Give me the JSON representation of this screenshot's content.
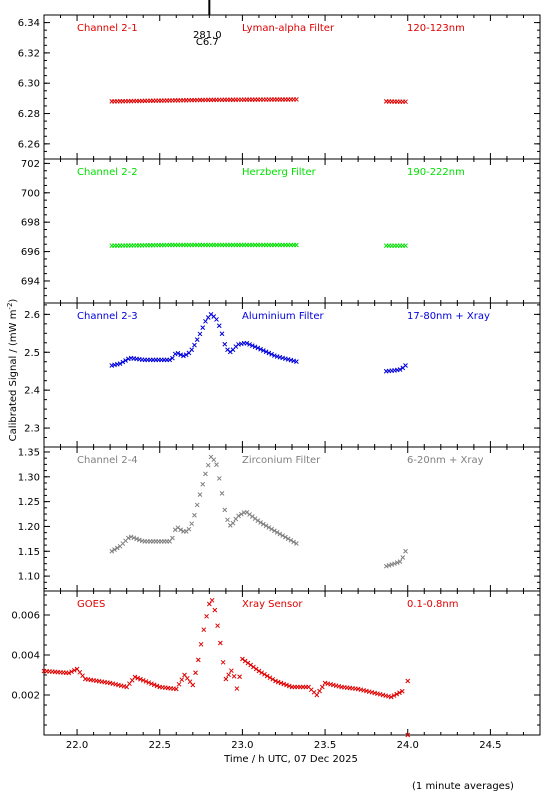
{
  "figure": {
    "ylabel": "Calibrated Signal / (mW m",
    "ylabel_sup": "-2",
    "ylabel_close": ")",
    "xlabel": "Time / h UTC, 07 Dec 2025",
    "footnote": "(1 minute averages)",
    "xlim": [
      21.8,
      24.8
    ],
    "xticks": [
      "22.0",
      "22.5",
      "23.0",
      "23.5",
      "24.0",
      "24.5"
    ],
    "event_marker": {
      "x": 22.8,
      "label1": "281.0",
      "label2": "C6.7"
    }
  },
  "chart_data": [
    {
      "type": "scatter",
      "panel": "Channel 2-1",
      "labels": [
        "Channel 2-1",
        "Lyman-alpha Filter",
        "120-123nm"
      ],
      "color": "#e00000",
      "ylim": [
        6.25,
        6.345
      ],
      "yticks": [
        "6.26",
        "6.28",
        "6.30",
        "6.32",
        "6.34"
      ],
      "segments": [
        {
          "x": [
            22.21,
            22.5,
            22.8,
            23.1,
            23.33
          ],
          "y": [
            6.288,
            6.2885,
            6.289,
            6.2892,
            6.2893
          ]
        },
        {
          "x": [
            23.87,
            23.95,
            24.0
          ],
          "y": [
            6.288,
            6.2878,
            6.2878
          ]
        }
      ]
    },
    {
      "type": "scatter",
      "panel": "Channel 2-2",
      "labels": [
        "Channel 2-2",
        "Herzberg Filter",
        "190-222nm"
      ],
      "color": "#00e000",
      "ylim": [
        692.5,
        702.3
      ],
      "yticks": [
        "694",
        "696",
        "698",
        "700",
        "702"
      ],
      "segments": [
        {
          "x": [
            22.21,
            22.6,
            23.0,
            23.33
          ],
          "y": [
            696.4,
            696.45,
            696.45,
            696.45
          ]
        },
        {
          "x": [
            23.87,
            24.0
          ],
          "y": [
            696.4,
            696.4
          ]
        }
      ]
    },
    {
      "type": "scatter",
      "panel": "Channel 2-3",
      "labels": [
        "Channel 2-3",
        "Aluminium Filter",
        "17-80nm + Xray"
      ],
      "color": "#0000dd",
      "ylim": [
        2.25,
        2.63
      ],
      "yticks": [
        "2.3",
        "2.4",
        "2.5",
        "2.6"
      ],
      "segments": [
        {
          "x": [
            22.21,
            22.26,
            22.32,
            22.4,
            22.5,
            22.57,
            22.6,
            22.64,
            22.67,
            22.7,
            22.74,
            22.78,
            22.81,
            22.84,
            22.87,
            22.9,
            22.93,
            22.97,
            23.02,
            23.1,
            23.2,
            23.33
          ],
          "y": [
            2.465,
            2.47,
            2.485,
            2.48,
            2.48,
            2.48,
            2.5,
            2.49,
            2.495,
            2.51,
            2.545,
            2.585,
            2.6,
            2.59,
            2.56,
            2.51,
            2.5,
            2.52,
            2.525,
            2.51,
            2.49,
            2.475
          ]
        },
        {
          "x": [
            23.87,
            23.92,
            23.96,
            24.0
          ],
          "y": [
            2.45,
            2.452,
            2.455,
            2.47
          ]
        }
      ]
    },
    {
      "type": "scatter",
      "panel": "Channel 2-4",
      "labels": [
        "Channel 2-4",
        "Zirconium Filter",
        "6-20nm + Xray"
      ],
      "color": "#808080",
      "ylim": [
        1.07,
        1.36
      ],
      "yticks": [
        "1.10",
        "1.15",
        "1.20",
        "1.25",
        "1.30",
        "1.35"
      ],
      "segments": [
        {
          "x": [
            22.21,
            22.26,
            22.32,
            22.4,
            22.5,
            22.57,
            22.6,
            22.64,
            22.67,
            22.7,
            22.74,
            22.78,
            22.81,
            22.84,
            22.87,
            22.9,
            22.93,
            22.97,
            23.02,
            23.1,
            23.2,
            23.33
          ],
          "y": [
            1.15,
            1.16,
            1.18,
            1.17,
            1.17,
            1.17,
            1.2,
            1.19,
            1.19,
            1.21,
            1.26,
            1.31,
            1.34,
            1.33,
            1.28,
            1.22,
            1.2,
            1.22,
            1.23,
            1.21,
            1.19,
            1.165
          ]
        },
        {
          "x": [
            23.87,
            23.92,
            23.96,
            24.0
          ],
          "y": [
            1.12,
            1.125,
            1.13,
            1.16
          ]
        }
      ]
    },
    {
      "type": "scatter",
      "panel": "GOES",
      "labels": [
        "GOES",
        "Xray Sensor",
        "0.1-0.8nm"
      ],
      "color": "#e00000",
      "ylim": [
        0.0,
        0.0072
      ],
      "yticks": [
        "0.002",
        "0.004",
        "0.006"
      ],
      "segments": [
        {
          "x": [
            21.8,
            21.95,
            22.0,
            22.05,
            22.2,
            22.3,
            22.35,
            22.5,
            22.6,
            22.65,
            22.7,
            22.73,
            22.76,
            22.79,
            22.81,
            22.83,
            22.86,
            22.88,
            22.9,
            22.94,
            22.97,
            23.0,
            23.1,
            23.2,
            23.3,
            23.4,
            23.45,
            23.5,
            23.55,
            23.6,
            23.7,
            23.8,
            23.9,
            23.97
          ],
          "y": [
            0.0032,
            0.0031,
            0.0033,
            0.0028,
            0.0026,
            0.0024,
            0.0029,
            0.0024,
            0.0023,
            0.003,
            0.0025,
            0.0036,
            0.005,
            0.0062,
            0.0069,
            0.0064,
            0.005,
            0.0038,
            0.0028,
            0.0033,
            0.0022,
            0.0038,
            0.0032,
            0.0027,
            0.0024,
            0.0024,
            0.002,
            0.0026,
            0.0025,
            0.0024,
            0.0023,
            0.0021,
            0.0019,
            0.0022
          ]
        },
        {
          "x": [
            24.0
          ],
          "y": [
            0.0027
          ]
        }
      ]
    }
  ]
}
